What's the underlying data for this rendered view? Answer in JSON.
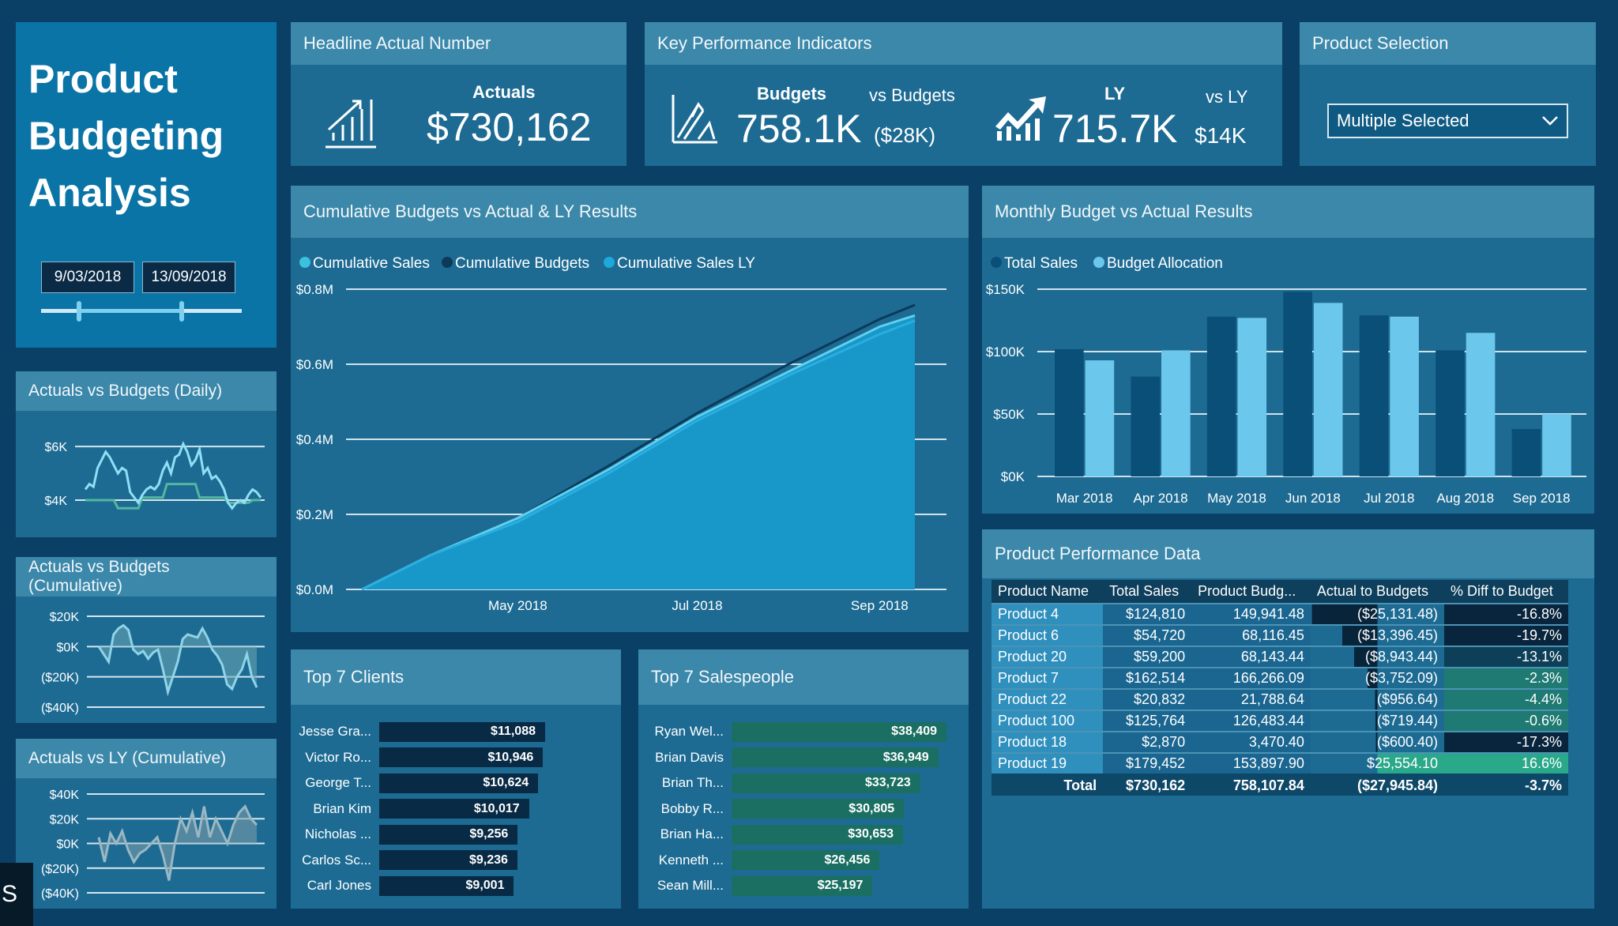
{
  "title": {
    "line1": "Product",
    "line2": "Budgeting",
    "line3": "Analysis"
  },
  "date_slicer": {
    "start": "9/03/2018",
    "end": "13/09/2018"
  },
  "headline": {
    "header": "Headline Actual Number",
    "label": "Actuals",
    "value": "$730,162",
    "icon": "bar-chart-growth-icon"
  },
  "kpi": {
    "header": "Key Performance Indicators",
    "budgets_label": "Budgets",
    "budgets_value": "758.1K",
    "vs_budgets_label": "vs Budgets",
    "vs_budgets_value": "($28K)",
    "ly_label": "LY",
    "ly_value": "715.7K",
    "vs_ly_label": "vs LY",
    "vs_ly_value": "$14K"
  },
  "product_selection": {
    "header": "Product Selection",
    "value": "Multiple Selected"
  },
  "colors": {
    "background": "#0b4066",
    "panel": "#1d6b93",
    "panel_header": "#3b88aa",
    "title_panel": "#0a74a6",
    "positive": "#2aa88a",
    "negative_bar": "#0a2740",
    "clients_bar": "#082a45",
    "sales_bar": "#1a6f62"
  },
  "daily": {
    "header": "Actuals vs Budgets (Daily)",
    "ticks": [
      "$6K",
      "$4K"
    ],
    "tick_values": [
      6,
      4
    ],
    "ylim": [
      3.5,
      6.3
    ],
    "actual": [
      4.4,
      4.6,
      4.5,
      5.2,
      5.5,
      5.8,
      5.6,
      5.3,
      5.0,
      5.2,
      5.1,
      4.3,
      4.1,
      3.9,
      4.2,
      4.4,
      4.5,
      4.4,
      4.6,
      5.1,
      5.4,
      5.0,
      5.6,
      5.7,
      6.1,
      5.8,
      5.3,
      5.5,
      5.9,
      5.0,
      5.2,
      4.8,
      4.9,
      4.7,
      4.4,
      3.9,
      3.7,
      3.9,
      4.0,
      3.9,
      4.2,
      4.4,
      4.3,
      4.1
    ],
    "budget": [
      4,
      4,
      4,
      4,
      4,
      4,
      4,
      4,
      3.7,
      3.7,
      3.7,
      3.7,
      3.7,
      3.7,
      4.1,
      4.1,
      4.1,
      4.1,
      4.1,
      4.1,
      4.6,
      4.6,
      4.6,
      4.6,
      4.6,
      4.6,
      4.6,
      4.6,
      4.1,
      4.1,
      4.1,
      4.1,
      4.1,
      4.1,
      4.1,
      3.9,
      3.9,
      3.9,
      3.9,
      3.9,
      3.9,
      4.0,
      4.0,
      4.0
    ]
  },
  "cum_budget": {
    "header": "Actuals vs Budgets (Cumulative)",
    "ticks": [
      "$20K",
      "$0K",
      "($20K)",
      "($40K)"
    ],
    "tick_values": [
      20,
      0,
      -20,
      -40
    ],
    "ylim": [
      -40,
      20
    ],
    "values": [
      0,
      -5,
      -10,
      8,
      12,
      14,
      11,
      -2,
      -5,
      -3,
      -8,
      -4,
      -2,
      -15,
      -30,
      -20,
      -10,
      5,
      8,
      7,
      6,
      12,
      6,
      -2,
      -6,
      -12,
      -25,
      -28,
      -20,
      -15,
      -5,
      -20,
      -27
    ]
  },
  "cum_ly": {
    "header": "Actuals vs LY (Cumulative)",
    "ticks": [
      "$40K",
      "$20K",
      "$0K",
      "($20K)",
      "($40K)"
    ],
    "tick_values": [
      40,
      20,
      0,
      -20,
      -40
    ],
    "ylim": [
      -40,
      40
    ],
    "values": [
      5,
      -15,
      8,
      0,
      10,
      -5,
      -15,
      -8,
      -5,
      0,
      5,
      -10,
      -30,
      0,
      20,
      10,
      25,
      5,
      30,
      5,
      20,
      10,
      0,
      15,
      25,
      30,
      20,
      15
    ]
  },
  "cumulative_chart": {
    "header": "Cumulative Budgets vs Actual & LY Results",
    "chart_data": {
      "type": "area",
      "legend": [
        "Cumulative Sales",
        "Cumulative Budgets",
        "Cumulative Sales LY"
      ],
      "legend_colors": [
        "#3cc0e0",
        "#0b3a5a",
        "#1ea8dc"
      ],
      "legend_placement": "top-left",
      "y_ticks": [
        "$0.8M",
        "$0.6M",
        "$0.4M",
        "$0.2M",
        "$0.0M"
      ],
      "y_tick_values": [
        0.8,
        0.6,
        0.4,
        0.2,
        0
      ],
      "ylim": [
        0,
        0.8
      ],
      "x_ticks": [
        "May 2018",
        "Jul 2018",
        "Sep 2018"
      ],
      "x_tick_dates": [
        "2018-05-01",
        "2018-07-01",
        "2018-09-01"
      ],
      "x": [
        "2018-03-09",
        "2018-04-01",
        "2018-05-01",
        "2018-06-01",
        "2018-07-01",
        "2018-08-01",
        "2018-09-01",
        "2018-09-13"
      ],
      "series": [
        {
          "name": "Cumulative Sales",
          "values": [
            0,
            0.09,
            0.19,
            0.32,
            0.46,
            0.58,
            0.7,
            0.73
          ]
        },
        {
          "name": "Cumulative Budgets",
          "values": [
            0,
            0.085,
            0.19,
            0.33,
            0.47,
            0.6,
            0.72,
            0.758
          ]
        },
        {
          "name": "Cumulative Sales LY",
          "values": [
            0,
            0.09,
            0.18,
            0.31,
            0.45,
            0.57,
            0.68,
            0.716
          ]
        }
      ]
    }
  },
  "monthly_chart": {
    "header": "Monthly Budget vs Actual Results",
    "chart_data": {
      "type": "bar",
      "legend": [
        "Total Sales",
        "Budget Allocation"
      ],
      "legend_colors": [
        "#0a4f78",
        "#6cc7ec"
      ],
      "legend_placement": "top-left",
      "categories": [
        "Mar 2018",
        "Apr 2018",
        "May 2018",
        "Jun 2018",
        "Jul 2018",
        "Aug 2018",
        "Sep 2018"
      ],
      "series": [
        {
          "name": "Total Sales",
          "values": [
            102,
            80,
            128,
            148,
            129,
            101,
            38
          ]
        },
        {
          "name": "Budget Allocation",
          "values": [
            93,
            101,
            127,
            139,
            128,
            115,
            50
          ]
        }
      ],
      "y_ticks": [
        "$150K",
        "$100K",
        "$50K",
        "$0K"
      ],
      "y_tick_values": [
        150,
        100,
        50,
        0
      ],
      "ylim": [
        0,
        150
      ],
      "unit": "K"
    }
  },
  "table": {
    "header": "Product Performance Data",
    "columns": [
      "Product Name",
      "Total Sales",
      "Product Budg...",
      "Actual to Budgets",
      "% Diff to Budget"
    ],
    "rows": [
      [
        "Product 4",
        "$124,810",
        "149,941.48",
        "($25,131.48)",
        "-16.8%"
      ],
      [
        "Product 6",
        "$54,720",
        "68,116.45",
        "($13,396.45)",
        "-19.7%"
      ],
      [
        "Product 20",
        "$59,200",
        "68,143.44",
        "($8,943.44)",
        "-13.1%"
      ],
      [
        "Product 7",
        "$162,514",
        "166,266.09",
        "($3,752.09)",
        "-2.3%"
      ],
      [
        "Product 22",
        "$20,832",
        "21,788.64",
        "($956.64)",
        "-4.4%"
      ],
      [
        "Product 100",
        "$125,764",
        "126,483.44",
        "($719.44)",
        "-0.6%"
      ],
      [
        "Product 18",
        "$2,870",
        "3,470.40",
        "($600.40)",
        "-17.3%"
      ],
      [
        "Product 19",
        "$179,452",
        "153,897.90",
        "$25,554.10",
        "16.6%"
      ]
    ],
    "diff_values": [
      -25131.48,
      -13396.45,
      -8943.44,
      -3752.09,
      -956.64,
      -719.44,
      -600.4,
      25554.1
    ],
    "pct_values": [
      -16.8,
      -19.7,
      -13.1,
      -2.3,
      -4.4,
      -0.6,
      -17.3,
      16.6
    ],
    "total": [
      "Total",
      "$730,162",
      "758,107.84",
      "($27,945.84)",
      "-3.7%"
    ]
  },
  "clients": {
    "header": "Top 7 Clients",
    "items": [
      {
        "name": "Jesse Gra...",
        "label": "$11,088",
        "value": 11088
      },
      {
        "name": "Victor Ro...",
        "label": "$10,946",
        "value": 10946
      },
      {
        "name": "George T...",
        "label": "$10,624",
        "value": 10624
      },
      {
        "name": "Brian Kim",
        "label": "$10,017",
        "value": 10017
      },
      {
        "name": "Nicholas ...",
        "label": "$9,256",
        "value": 9256
      },
      {
        "name": "Carlos Sc...",
        "label": "$9,236",
        "value": 9236
      },
      {
        "name": "Carl Jones",
        "label": "$9,001",
        "value": 9001
      }
    ]
  },
  "salespeople": {
    "header": "Top 7 Salespeople",
    "items": [
      {
        "name": "Ryan Wel...",
        "label": "$38,409",
        "value": 38409
      },
      {
        "name": "Brian Davis",
        "label": "$36,949",
        "value": 36949
      },
      {
        "name": "Brian Th...",
        "label": "$33,723",
        "value": 33723
      },
      {
        "name": "Bobby R...",
        "label": "$30,805",
        "value": 30805
      },
      {
        "name": "Brian Ha...",
        "label": "$30,653",
        "value": 30653
      },
      {
        "name": "Kenneth ...",
        "label": "$26,456",
        "value": 26456
      },
      {
        "name": "Sean Mill...",
        "label": "$25,197",
        "value": 25197
      }
    ]
  },
  "overlay": {
    "badge": "S"
  }
}
